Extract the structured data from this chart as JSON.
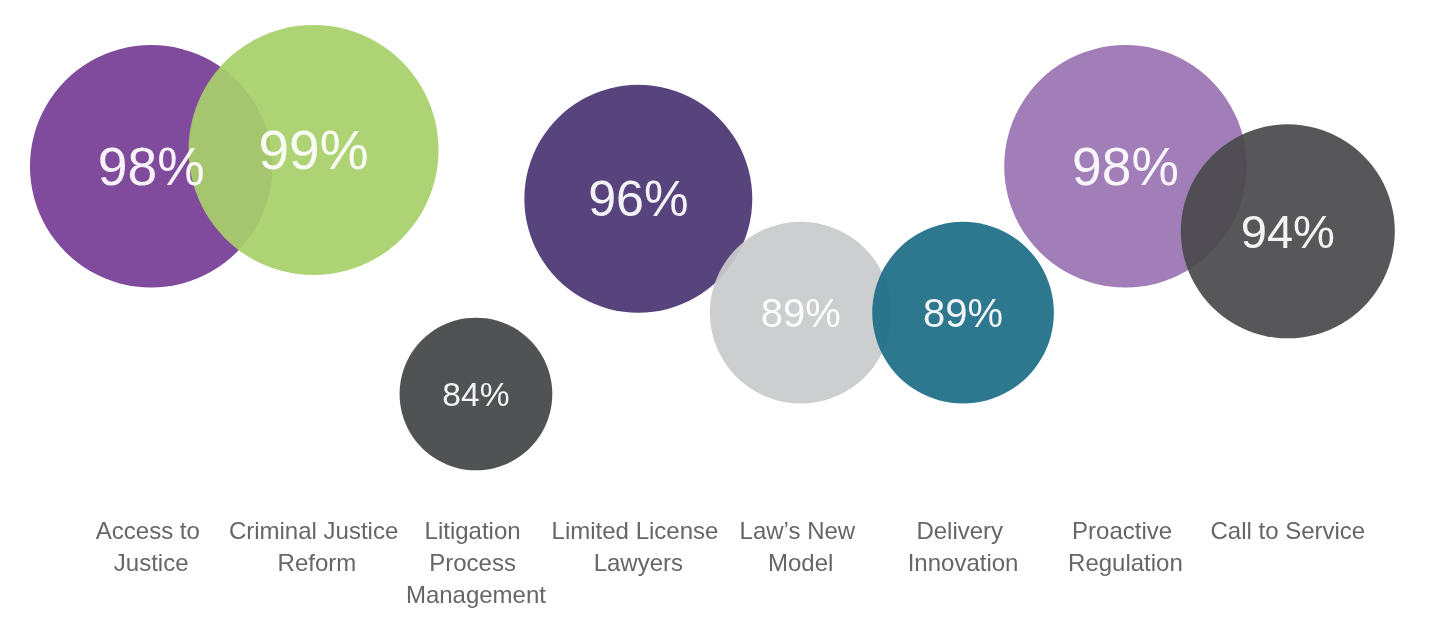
{
  "chart_data": {
    "type": "other",
    "categories": [
      "Access to Justice",
      "Criminal Justice Reform",
      "Litigation Process Management",
      "Limited License Lawyers",
      "Law’s New Model",
      "Delivery Innovation",
      "Proactive Regulation",
      "Call to Service"
    ],
    "values": [
      98,
      99,
      84,
      96,
      89,
      89,
      98,
      94
    ],
    "value_labels": [
      "98%",
      "99%",
      "84%",
      "96%",
      "89%",
      "89%",
      "98%",
      "94%"
    ],
    "colors": [
      "#773d96",
      "#a8d06a",
      "#444547",
      "#4b3673",
      "#c9cacc",
      "#1e6e87",
      "#9a74b1",
      "#4a4a4c"
    ]
  }
}
